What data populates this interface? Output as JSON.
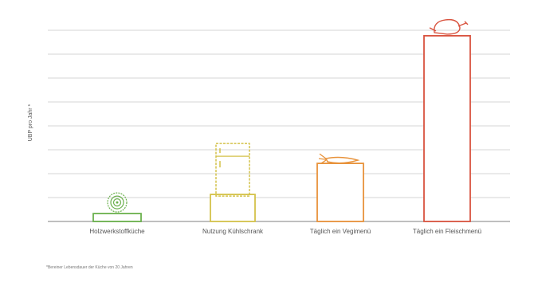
{
  "chart_data": {
    "type": "bar",
    "ylabel": "UBP pro Jahr *",
    "categories": [
      "Holzwerkstoffküche",
      "Nutzung Kühlschrank",
      "Täglich ein Vegimenü",
      "Täglich ein Fleischmenü"
    ],
    "values": [
      0.33,
      1.13,
      2.43,
      7.77
    ],
    "ylim": [
      0,
      8
    ],
    "grid": true,
    "colors": [
      "#6ab04c",
      "#d4c24a",
      "#e8923a",
      "#d9533f"
    ],
    "icons": [
      "wood-rings-icon",
      "fridge-icon",
      "carrot-icon",
      "chicken-icon"
    ],
    "footnote": "*Bereiner Lebensdauer der Küche von 20 Jahren"
  }
}
